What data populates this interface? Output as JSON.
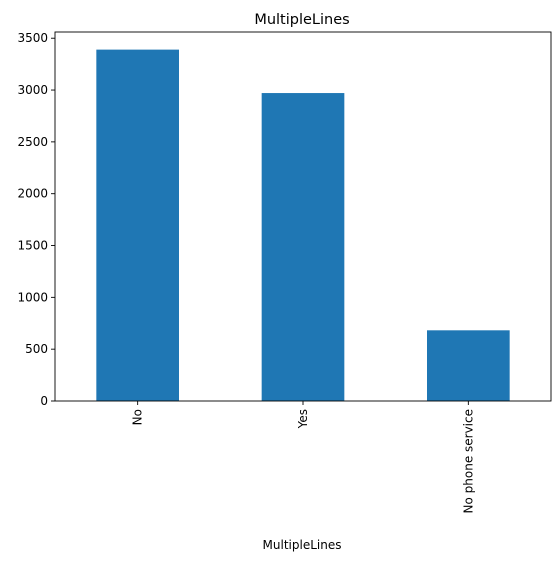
{
  "chart_data": {
    "type": "bar",
    "title": "MultipleLines",
    "xlabel": "MultipleLines",
    "ylabel": "",
    "categories": [
      "No",
      "Yes",
      "No phone service"
    ],
    "values": [
      3390,
      2971,
      682
    ],
    "ylim": [
      0,
      3560
    ],
    "yticks": [
      0,
      500,
      1000,
      1500,
      2000,
      2500,
      3000,
      3500
    ],
    "bar_color": "#1f77b4",
    "grid": false,
    "legend": "none"
  }
}
